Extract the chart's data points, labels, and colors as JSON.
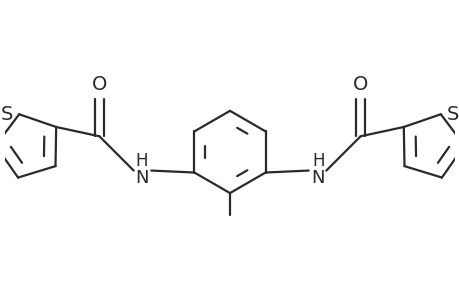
{
  "bg_color": "#ffffff",
  "line_color": "#2a2a2a",
  "line_width": 1.6,
  "font_size": 13,
  "figsize": [
    4.6,
    3.0
  ],
  "dpi": 100,
  "xlim": [
    -2.3,
    2.3
  ],
  "ylim": [
    -1.1,
    1.3
  ]
}
